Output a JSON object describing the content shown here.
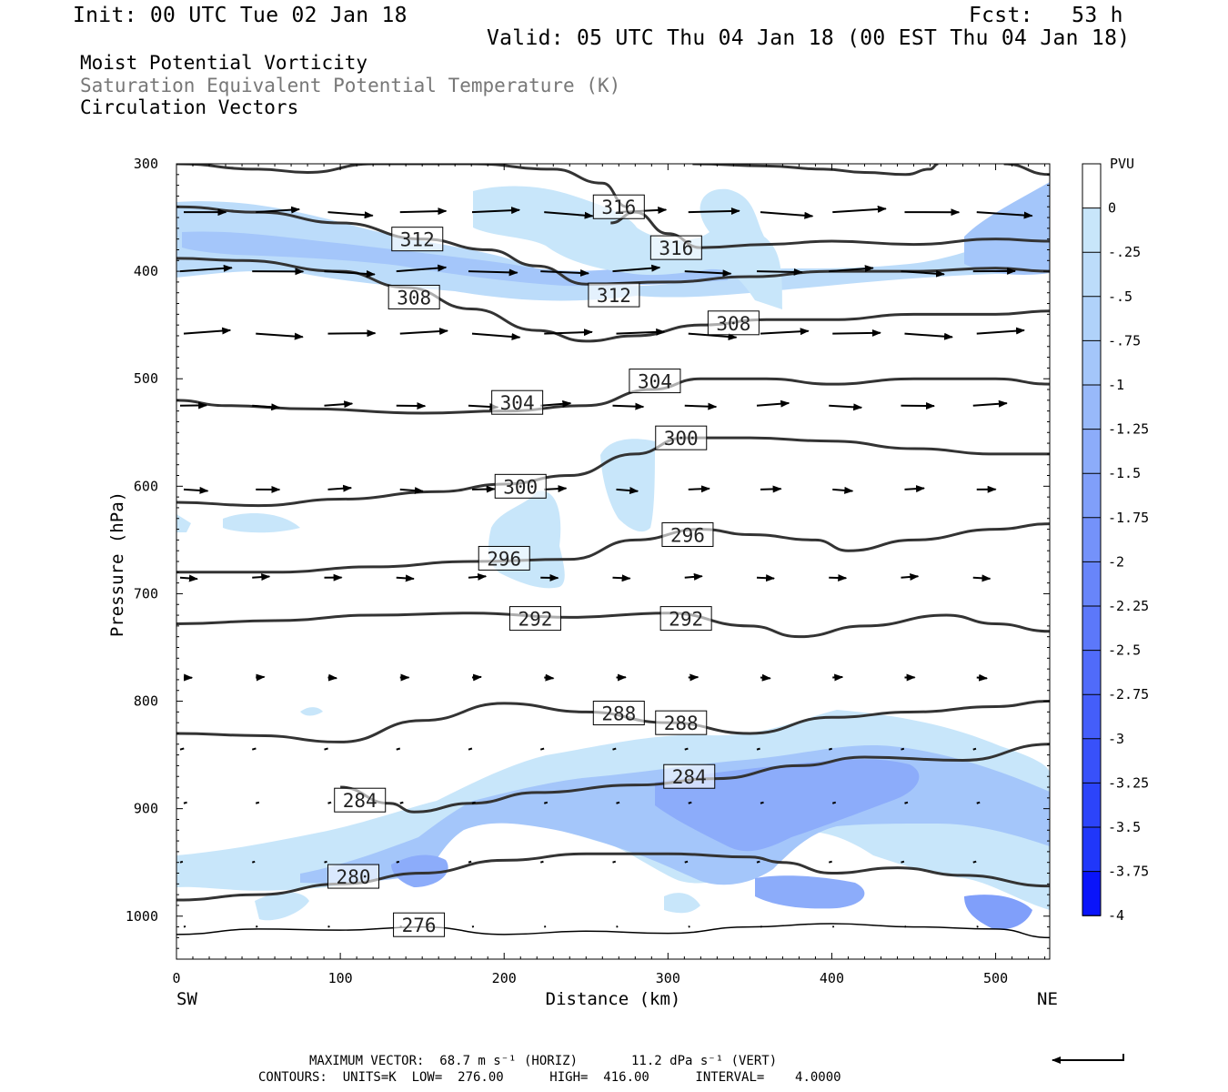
{
  "header": {
    "init": "Init: 00 UTC Tue 02 Jan 18",
    "fcst": "Fcst:   53 h",
    "valid": "Valid: 05 UTC Thu 04 Jan 18 (00 EST Thu 04 Jan 18)",
    "field1": "Moist Potential Vorticity",
    "field2": "Saturation Equivalent Potential Temperature (K)",
    "field3": "Circulation Vectors"
  },
  "footer": {
    "line1": "MAXIMUM VECTOR:  68.7 m s⁻¹ (HORIZ)       11.2 dPa s⁻¹ (VERT)",
    "line2": "CONTOURS:  UNITS=K  LOW=  276.00      HIGH=  416.00      INTERVAL=    4.0000"
  },
  "chart_data": {
    "type": "cross-section",
    "xlabel": "Distance (km)",
    "ylabel": "Pressure (hPa)",
    "xlim": [
      0,
      533
    ],
    "ylim": [
      1040,
      300
    ],
    "x_ticks": [
      "0",
      "100",
      "200",
      "300",
      "400",
      "500"
    ],
    "y_ticks": [
      "300",
      "400",
      "500",
      "600",
      "700",
      "800",
      "900",
      "1000"
    ],
    "x_endpoints": {
      "left": "SW",
      "right": "NE"
    },
    "colorbar": {
      "unit": "PVU",
      "labels": [
        "0",
        "-.25",
        "-.5",
        "-.75",
        "-1",
        "-1.25",
        "-1.5",
        "-1.75",
        "-2",
        "-2.25",
        "-2.5",
        "-2.75",
        "-3",
        "-3.25",
        "-3.5",
        "-3.75",
        "-4"
      ],
      "colors": [
        "#ffffff",
        "#c8e6fa",
        "#bcdcfa",
        "#b0d2fa",
        "#a4c6fa",
        "#98b9fa",
        "#8cacfa",
        "#809ffa",
        "#7492fa",
        "#6885fa",
        "#5c78fa",
        "#506bfa",
        "#445efa",
        "#3851fa",
        "#2c44fa",
        "#2037fa",
        "#0a14fa"
      ]
    },
    "contours": [
      {
        "label": "276",
        "label_pos": [
          148,
          1008
        ],
        "points": [
          [
            0,
            1017
          ],
          [
            50,
            1012
          ],
          [
            100,
            1013
          ],
          [
            150,
            1010
          ],
          [
            200,
            1017
          ],
          [
            250,
            1014
          ],
          [
            300,
            1016
          ],
          [
            350,
            1010
          ],
          [
            400,
            1007
          ],
          [
            450,
            1010
          ],
          [
            500,
            1012
          ],
          [
            533,
            1020
          ]
        ]
      },
      {
        "label": "280",
        "label_pos": [
          108,
          963
        ],
        "points": [
          [
            0,
            985
          ],
          [
            50,
            980
          ],
          [
            100,
            970
          ],
          [
            150,
            960
          ],
          [
            200,
            948
          ],
          [
            250,
            942
          ],
          [
            300,
            942
          ],
          [
            350,
            945
          ],
          [
            370,
            950
          ],
          [
            400,
            960
          ],
          [
            440,
            955
          ],
          [
            480,
            962
          ],
          [
            533,
            972
          ]
        ]
      },
      {
        "label": "284",
        "label_pos": [
          112,
          892
        ],
        "points": [
          [
            100,
            880
          ],
          [
            130,
            895
          ],
          [
            145,
            903
          ],
          [
            180,
            895
          ],
          [
            220,
            885
          ],
          [
            280,
            878
          ],
          [
            330,
            872
          ],
          [
            380,
            860
          ],
          [
            420,
            852
          ],
          [
            480,
            855
          ],
          [
            533,
            840
          ]
        ]
      },
      {
        "label": "284",
        "label_pos": [
          313,
          870
        ]
      },
      {
        "label": "288",
        "label_pos": [
          270,
          811
        ],
        "points": [
          [
            0,
            830
          ],
          [
            50,
            832
          ],
          [
            100,
            838
          ],
          [
            150,
            818
          ],
          [
            200,
            802
          ],
          [
            250,
            810
          ],
          [
            300,
            820
          ],
          [
            350,
            830
          ],
          [
            400,
            815
          ],
          [
            450,
            810
          ],
          [
            500,
            805
          ],
          [
            533,
            800
          ]
        ]
      },
      {
        "label": "288",
        "label_pos": [
          308,
          820
        ]
      },
      {
        "label": "292",
        "label_pos": [
          219,
          723
        ],
        "points": [
          [
            0,
            728
          ],
          [
            60,
            725
          ],
          [
            120,
            720
          ],
          [
            180,
            718
          ],
          [
            240,
            722
          ],
          [
            300,
            718
          ],
          [
            350,
            730
          ],
          [
            380,
            740
          ],
          [
            420,
            730
          ],
          [
            470,
            720
          ],
          [
            500,
            728
          ],
          [
            533,
            735
          ]
        ]
      },
      {
        "label": "292",
        "label_pos": [
          311,
          723
        ]
      },
      {
        "label": "296",
        "label_pos": [
          200,
          667
        ],
        "points": [
          [
            0,
            680
          ],
          [
            60,
            680
          ],
          [
            120,
            675
          ],
          [
            180,
            670
          ],
          [
            240,
            668
          ],
          [
            280,
            650
          ],
          [
            320,
            640
          ],
          [
            350,
            645
          ],
          [
            390,
            650
          ],
          [
            410,
            660
          ],
          [
            450,
            650
          ],
          [
            500,
            640
          ],
          [
            533,
            635
          ]
        ]
      },
      {
        "label": "296",
        "label_pos": [
          312,
          645
        ]
      },
      {
        "label": "300",
        "label_pos": [
          210,
          600
        ],
        "points": [
          [
            0,
            615
          ],
          [
            50,
            618
          ],
          [
            100,
            612
          ],
          [
            160,
            605
          ],
          [
            200,
            598
          ],
          [
            240,
            590
          ],
          [
            280,
            570
          ],
          [
            310,
            555
          ],
          [
            350,
            555
          ],
          [
            400,
            558
          ],
          [
            450,
            565
          ],
          [
            500,
            570
          ],
          [
            533,
            570
          ]
        ]
      },
      {
        "label": "300",
        "label_pos": [
          308,
          555
        ]
      },
      {
        "label": "304",
        "label_pos": [
          208,
          522
        ],
        "points": [
          [
            0,
            520
          ],
          [
            30,
            525
          ],
          [
            80,
            528
          ],
          [
            150,
            532
          ],
          [
            200,
            530
          ],
          [
            250,
            525
          ],
          [
            290,
            510
          ],
          [
            320,
            500
          ],
          [
            360,
            500
          ],
          [
            400,
            505
          ],
          [
            450,
            500
          ],
          [
            500,
            500
          ],
          [
            533,
            505
          ]
        ]
      },
      {
        "label": "304",
        "label_pos": [
          292,
          502
        ]
      },
      {
        "label": "308",
        "label_pos": [
          145,
          424
        ],
        "points": [
          [
            0,
            388
          ],
          [
            40,
            390
          ],
          [
            100,
            400
          ],
          [
            140,
            415
          ],
          [
            180,
            435
          ],
          [
            220,
            455
          ],
          [
            250,
            465
          ],
          [
            280,
            460
          ],
          [
            320,
            450
          ],
          [
            360,
            445
          ],
          [
            400,
            445
          ],
          [
            450,
            440
          ],
          [
            500,
            440
          ],
          [
            533,
            437
          ]
        ]
      },
      {
        "label": "308",
        "label_pos": [
          340,
          448
        ]
      },
      {
        "label": "312",
        "label_pos": [
          147,
          370
        ],
        "points": [
          [
            0,
            340
          ],
          [
            50,
            345
          ],
          [
            100,
            355
          ],
          [
            150,
            370
          ],
          [
            190,
            380
          ],
          [
            220,
            395
          ],
          [
            250,
            412
          ],
          [
            300,
            410
          ],
          [
            350,
            405
          ],
          [
            400,
            400
          ],
          [
            450,
            400
          ],
          [
            500,
            397
          ],
          [
            533,
            400
          ]
        ]
      },
      {
        "label": "312",
        "label_pos": [
          267,
          422
        ]
      },
      {
        "label": "316",
        "label_pos": [
          270,
          340
        ],
        "points": [
          [
            265,
            355
          ],
          [
            280,
            345
          ],
          [
            300,
            365
          ],
          [
            320,
            378
          ],
          [
            360,
            375
          ],
          [
            400,
            372
          ],
          [
            450,
            375
          ],
          [
            500,
            370
          ],
          [
            533,
            372
          ]
        ]
      },
      {
        "label": "316",
        "label_pos": [
          305,
          378
        ]
      },
      {
        "label": "",
        "points": [
          [
            0,
            300
          ],
          [
            50,
            305
          ],
          [
            80,
            308
          ],
          [
            120,
            300
          ],
          [
            180,
            300
          ],
          [
            230,
            305
          ],
          [
            260,
            318
          ],
          [
            275,
            340
          ]
        ]
      },
      {
        "label": "",
        "points": [
          [
            315,
            300
          ],
          [
            360,
            302
          ],
          [
            395,
            305
          ],
          [
            420,
            308
          ],
          [
            445,
            310
          ],
          [
            460,
            305
          ],
          [
            465,
            300
          ]
        ]
      },
      {
        "label": "",
        "points": [
          [
            505,
            300
          ],
          [
            533,
            310
          ]
        ]
      }
    ]
  }
}
